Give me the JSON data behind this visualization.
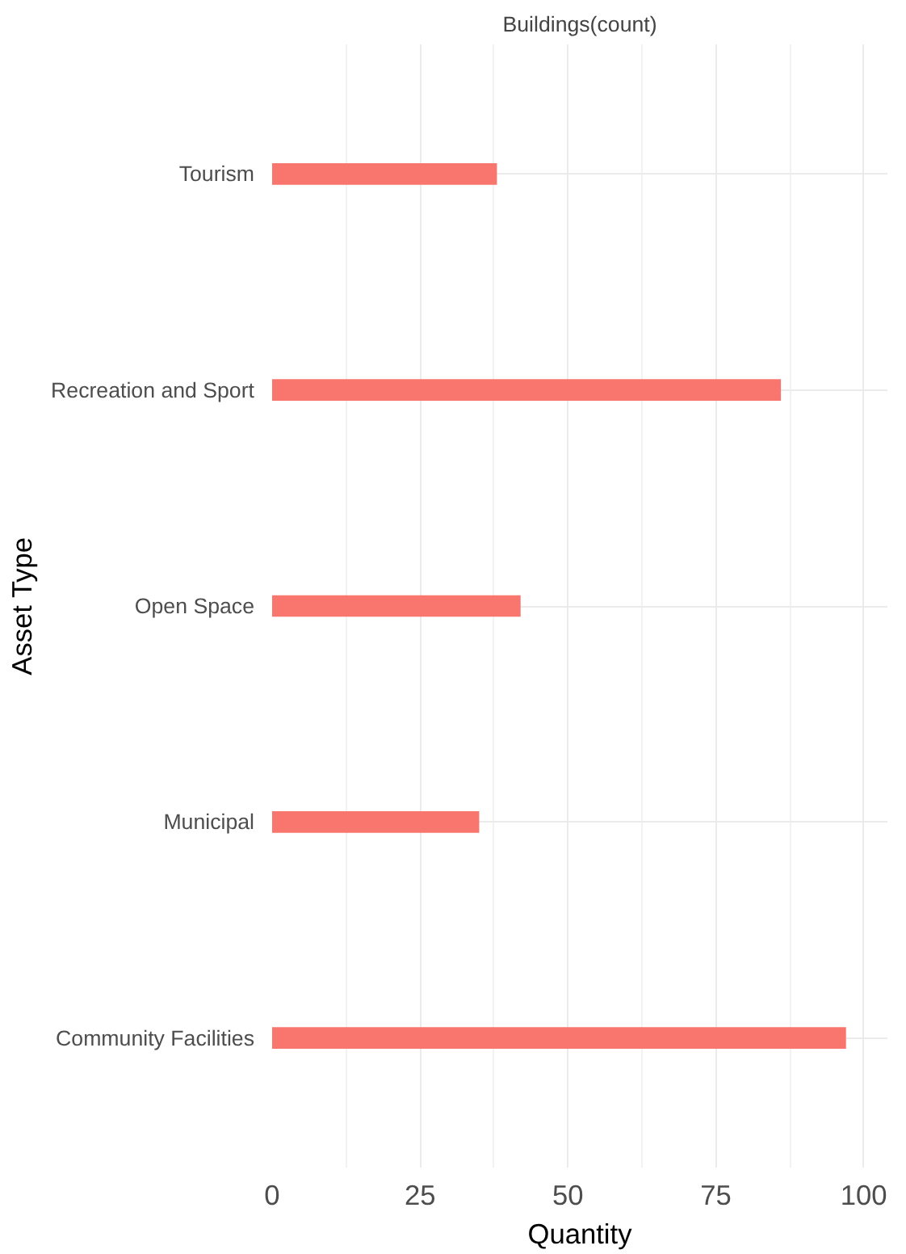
{
  "chart_data": {
    "type": "bar",
    "orientation": "horizontal",
    "title": "Buildings(count)",
    "xlabel": "Quantity",
    "ylabel": "Asset Type",
    "categories": [
      "Tourism",
      "Recreation and Sport",
      "Open Space",
      "Municipal",
      "Community Facilities"
    ],
    "values": [
      38,
      86,
      42,
      35,
      97
    ],
    "color": "#f8766d",
    "xlim": [
      0,
      104
    ],
    "xticks": [
      0,
      25,
      50,
      75,
      100
    ],
    "grid": true
  }
}
